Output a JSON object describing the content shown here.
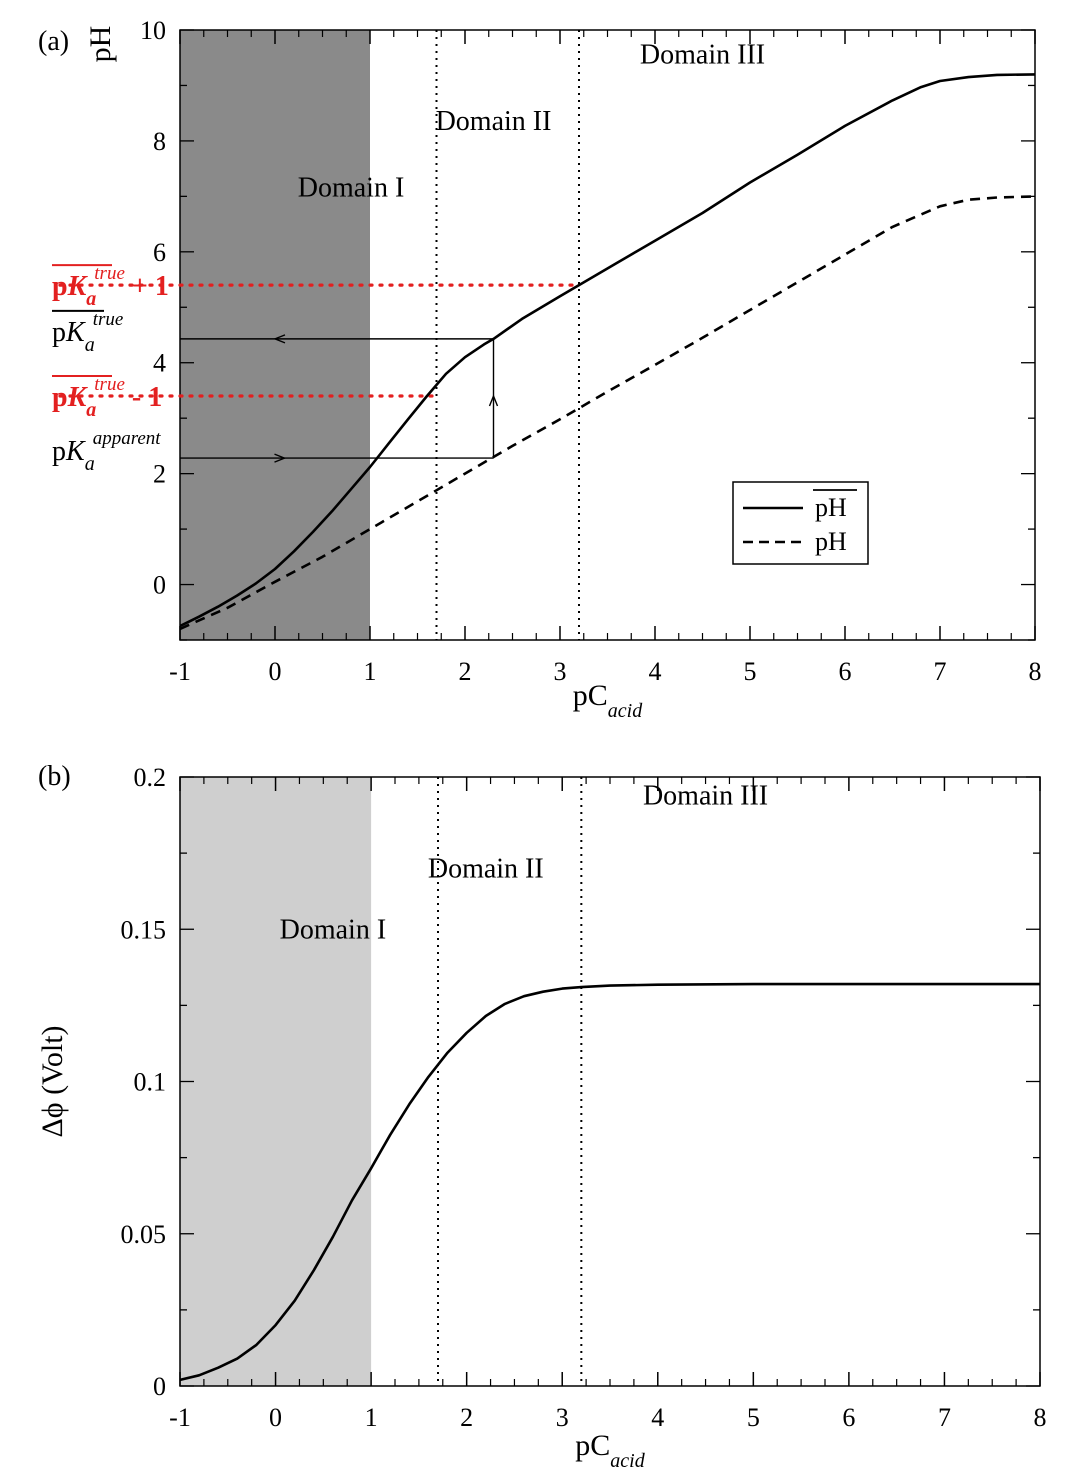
{
  "chart_data": [
    {
      "panel": "(a)",
      "type": "line",
      "xlabel_main": "pC",
      "xlabel_sub": "acid",
      "ylabel": "pH",
      "xlim": [
        -1,
        8
      ],
      "ylim": [
        -1,
        10
      ],
      "xticks": [
        "-1",
        "0",
        "1",
        "2",
        "3",
        "4",
        "5",
        "6",
        "7",
        "8"
      ],
      "yticks": [
        "0",
        "2",
        "4",
        "6",
        "8",
        "10"
      ],
      "ytick_values": [
        0,
        2,
        4,
        6,
        8,
        10
      ],
      "shaded_region": {
        "x0": -1,
        "x1": 1,
        "color": "#8a8a8a"
      },
      "domain_boundaries": [
        1.7,
        3.2
      ],
      "domain_labels": [
        {
          "text": "Domain I",
          "x": 0.8,
          "y": 7.0
        },
        {
          "text": "Domain II",
          "x": 2.3,
          "y": 8.2
        },
        {
          "text": "Domain III",
          "x": 4.5,
          "y": 9.4
        }
      ],
      "series": [
        {
          "name": "pH",
          "overline": true,
          "style": "solid",
          "x": [
            -1,
            -0.8,
            -0.6,
            -0.4,
            -0.2,
            0,
            0.2,
            0.4,
            0.6,
            0.8,
            1.0,
            1.2,
            1.4,
            1.6,
            1.8,
            2.0,
            2.2,
            2.3,
            2.6,
            3.0,
            3.2,
            3.6,
            4.0,
            4.5,
            5.0,
            5.5,
            6.0,
            6.5,
            6.8,
            7.0,
            7.3,
            7.6,
            8.0
          ],
          "y": [
            -0.75,
            -0.58,
            -0.4,
            -0.2,
            0.02,
            0.28,
            0.6,
            0.95,
            1.32,
            1.72,
            2.12,
            2.55,
            2.98,
            3.4,
            3.8,
            4.1,
            4.33,
            4.43,
            4.79,
            5.2,
            5.4,
            5.8,
            6.2,
            6.7,
            7.25,
            7.75,
            8.27,
            8.73,
            8.97,
            9.08,
            9.15,
            9.19,
            9.2
          ]
        },
        {
          "name": "pH",
          "overline": false,
          "style": "dashed",
          "x": [
            -1,
            -0.5,
            0,
            0.5,
            1,
            1.5,
            2,
            2.5,
            3,
            3.5,
            4,
            4.5,
            5,
            5.5,
            6,
            6.5,
            7,
            7.3,
            7.6,
            8
          ],
          "y": [
            -0.8,
            -0.42,
            0.05,
            0.5,
            1.0,
            1.5,
            2.0,
            2.5,
            2.98,
            3.48,
            3.96,
            4.45,
            4.95,
            5.45,
            5.95,
            6.45,
            6.82,
            6.94,
            6.98,
            7.0
          ]
        }
      ],
      "hlines": [
        {
          "y": 5.4,
          "x0": -1,
          "x1": 3.2,
          "color": "#e32020",
          "style": "dotted"
        },
        {
          "y": 3.4,
          "x0": -1,
          "x1": 1.7,
          "color": "#e32020",
          "style": "dotted"
        }
      ],
      "arrows": [
        {
          "from": [
            2.3,
            4.43
          ],
          "to": [
            -1,
            4.43
          ],
          "head_x": 0.0
        },
        {
          "from": [
            -1,
            2.28
          ],
          "to": [
            2.3,
            2.28
          ],
          "head_x": 0.1
        },
        {
          "from": [
            2.3,
            2.28
          ],
          "to": [
            2.3,
            4.43
          ],
          "head_y": 3.4
        }
      ],
      "annotations": [
        {
          "base": "pK",
          "sub": "a",
          "sup": "true",
          "tail": " + 1",
          "overline": true,
          "color": "#e32020",
          "y": 5.4
        },
        {
          "base": "pK",
          "sub": "a",
          "sup": "true",
          "tail": "",
          "overline": true,
          "color": "#000000",
          "y": 4.43
        },
        {
          "base": "pK",
          "sub": "a",
          "sup": "true",
          "tail": " - 1",
          "overline": true,
          "color": "#e32020",
          "y": 3.4
        },
        {
          "base": "pK",
          "sub": "a",
          "sup": "apparent",
          "tail": "",
          "overline": false,
          "color": "#000000",
          "y": 2.28
        }
      ],
      "legend": {
        "position": "lower-right"
      }
    },
    {
      "panel": "(b)",
      "type": "line",
      "xlabel_main": "pC",
      "xlabel_sub": "acid",
      "ylabel": "Δϕ (Volt)",
      "xlim": [
        -1,
        8
      ],
      "ylim": [
        0,
        0.2
      ],
      "xticks": [
        "-1",
        "0",
        "1",
        "2",
        "3",
        "4",
        "5",
        "6",
        "7",
        "8"
      ],
      "yticks": [
        "0",
        "0.05",
        "0.1",
        "0.15",
        "0.2"
      ],
      "ytick_values": [
        0,
        0.05,
        0.1,
        0.15,
        0.2
      ],
      "shaded_region": {
        "x0": -1,
        "x1": 1,
        "color": "#cfcfcf"
      },
      "domain_boundaries": [
        1.7,
        3.2
      ],
      "domain_labels": [
        {
          "text": "Domain I",
          "x": 0.6,
          "y": 0.147
        },
        {
          "text": "Domain II",
          "x": 2.2,
          "y": 0.167
        },
        {
          "text": "Domain III",
          "x": 4.5,
          "y": 0.191
        }
      ],
      "series": [
        {
          "name": "",
          "style": "solid",
          "x": [
            -1,
            -0.8,
            -0.6,
            -0.4,
            -0.2,
            0,
            0.2,
            0.4,
            0.6,
            0.8,
            1.0,
            1.2,
            1.4,
            1.6,
            1.8,
            2.0,
            2.2,
            2.4,
            2.6,
            2.8,
            3.0,
            3.2,
            3.5,
            4.0,
            5.0,
            6.0,
            7.0,
            8.0
          ],
          "y": [
            0.002,
            0.0035,
            0.006,
            0.009,
            0.0135,
            0.02,
            0.028,
            0.038,
            0.049,
            0.061,
            0.0715,
            0.0825,
            0.0925,
            0.1015,
            0.1095,
            0.116,
            0.1215,
            0.1255,
            0.128,
            0.1295,
            0.1305,
            0.131,
            0.1315,
            0.1318,
            0.132,
            0.132,
            0.132,
            0.132
          ]
        }
      ]
    }
  ]
}
